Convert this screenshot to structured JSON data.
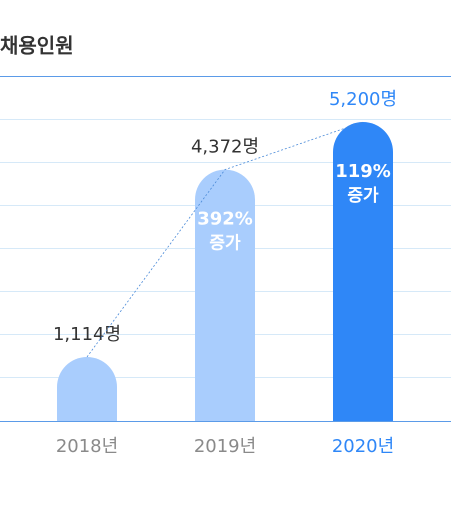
{
  "chart_data": {
    "type": "bar",
    "title": "채용인원",
    "categories": [
      "2018년",
      "2019년",
      "2020년"
    ],
    "values": [
      1114,
      4372,
      5200
    ],
    "value_labels": [
      "1,114명",
      "4,372명",
      "5,200명"
    ],
    "growth_labels": [
      null,
      "392%",
      "119%"
    ],
    "growth_word": "증가",
    "colors": [
      "#a9cdfd",
      "#a9cdfd",
      "#2f87f7"
    ],
    "label_colors": [
      "#8a8a8a",
      "#8a8a8a",
      "#2f87f7"
    ],
    "value_label_colors": [
      "#333333",
      "#333333",
      "#2f87f7"
    ],
    "ylim": [
      0,
      6000
    ]
  }
}
